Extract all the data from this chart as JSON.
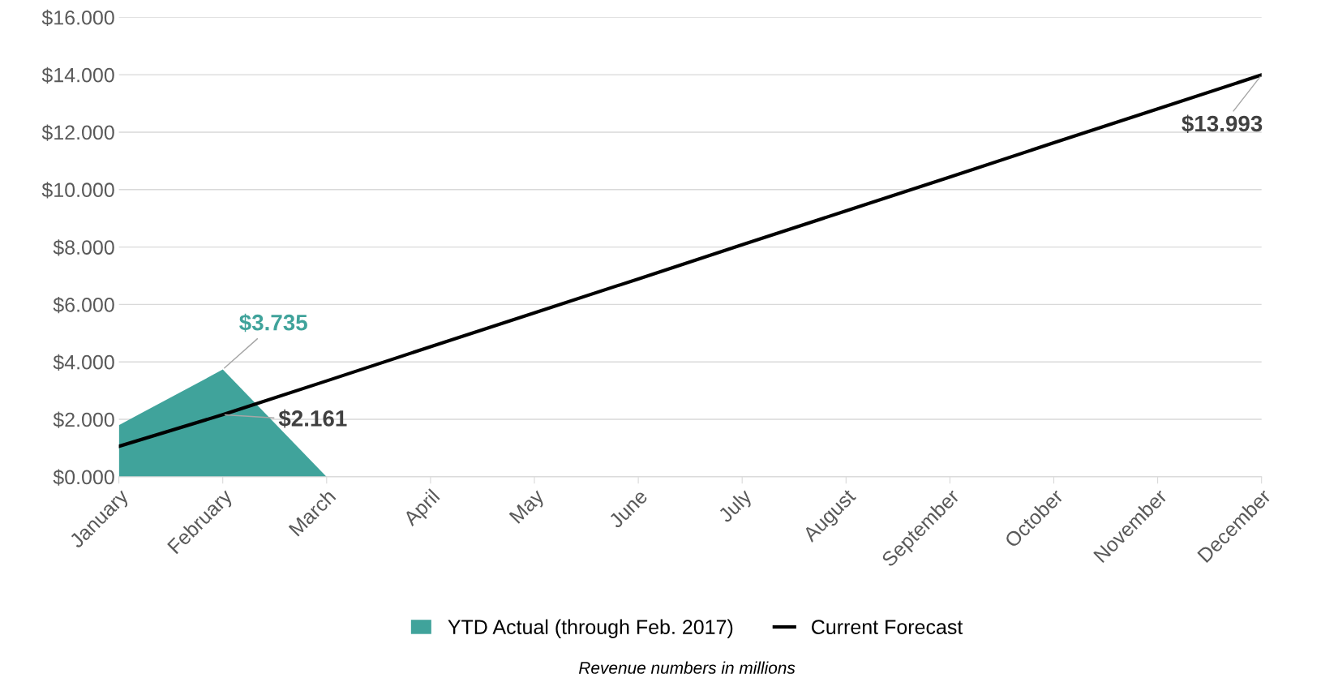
{
  "chart_data": {
    "type": "area",
    "categories": [
      "January",
      "February",
      "March",
      "April",
      "May",
      "June",
      "July",
      "August",
      "September",
      "October",
      "November",
      "December"
    ],
    "series": [
      {
        "name": "YTD Actual (through Feb. 2017)",
        "color": "#40a39b",
        "values": [
          1.8,
          3.735,
          0,
          null,
          null,
          null,
          null,
          null,
          null,
          null,
          null,
          null
        ],
        "value_labels": [
          null,
          "$3.735",
          null,
          null,
          null,
          null,
          null,
          null,
          null,
          null,
          null,
          null
        ]
      },
      {
        "name": "Current Forecast",
        "type": "line",
        "color": "#000000",
        "values": [
          1.06,
          2.161,
          3.34,
          4.53,
          5.71,
          6.89,
          8.08,
          9.26,
          10.44,
          11.63,
          12.81,
          13.993
        ],
        "value_labels": [
          null,
          "$2.161",
          null,
          null,
          null,
          null,
          null,
          null,
          null,
          null,
          null,
          "$13.993"
        ]
      }
    ],
    "ylim": [
      0,
      16
    ],
    "yticks": [
      {
        "value": 0,
        "label": "$0.000"
      },
      {
        "value": 2,
        "label": "$2.000"
      },
      {
        "value": 4,
        "label": "$4.000"
      },
      {
        "value": 6,
        "label": "$6.000"
      },
      {
        "value": 8,
        "label": "$8.000"
      },
      {
        "value": 10,
        "label": "$10.000"
      },
      {
        "value": 12,
        "label": "$12.000"
      },
      {
        "value": 14,
        "label": "$14.000"
      },
      {
        "value": 16,
        "label": "$16.000"
      }
    ],
    "grid": "y",
    "legend": "bottom",
    "annotations": [
      "Revenue numbers in millions"
    ]
  }
}
